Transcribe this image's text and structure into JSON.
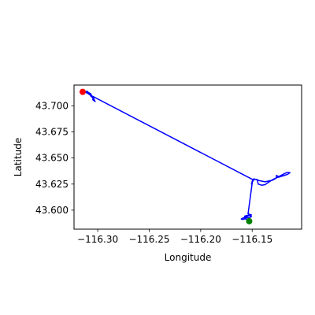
{
  "chart_data": {
    "type": "line",
    "title": "",
    "xlabel": "Longitude",
    "ylabel": "Latitude",
    "xlim": [
      -116.323,
      -116.102
    ],
    "ylim": [
      43.5818,
      43.7199
    ],
    "xticks": [
      {
        "value": -116.3,
        "label": "−116.30"
      },
      {
        "value": -116.25,
        "label": "−116.25"
      },
      {
        "value": -116.2,
        "label": "−116.20"
      },
      {
        "value": -116.15,
        "label": "−116.15"
      }
    ],
    "yticks": [
      {
        "value": 43.6,
        "label": "43.600"
      },
      {
        "value": 43.625,
        "label": "43.625"
      },
      {
        "value": 43.65,
        "label": "43.650"
      },
      {
        "value": 43.675,
        "label": "43.675"
      },
      {
        "value": 43.7,
        "label": "43.700"
      }
    ],
    "grid": false,
    "series": [
      {
        "color": "#0000ff",
        "points": [
          [
            -116.1529,
            43.5883
          ],
          [
            -116.1529,
            43.5905
          ],
          [
            -116.1562,
            43.5916
          ],
          [
            -116.1573,
            43.5916
          ],
          [
            -116.1595,
            43.5911
          ],
          [
            -116.1606,
            43.5916
          ],
          [
            -116.1584,
            43.5927
          ],
          [
            -116.1529,
            43.5927
          ],
          [
            -116.1507,
            43.5938
          ],
          [
            -116.1529,
            43.5949
          ],
          [
            -116.1551,
            43.5938
          ],
          [
            -116.1573,
            43.5932
          ],
          [
            -116.1573,
            43.5943
          ],
          [
            -116.1551,
            43.5949
          ],
          [
            -116.1507,
            43.5954
          ],
          [
            -116.154,
            43.5965
          ],
          [
            -116.1496,
            43.6289
          ],
          [
            -116.1507,
            43.625
          ],
          [
            -116.1485,
            43.6294
          ],
          [
            -116.1452,
            43.6294
          ],
          [
            -116.1441,
            43.625
          ],
          [
            -116.1408,
            43.6239
          ],
          [
            -116.1375,
            43.6244
          ],
          [
            -116.1342,
            43.6267
          ],
          [
            -116.1298,
            43.6294
          ],
          [
            -116.1254,
            43.6316
          ],
          [
            -116.1221,
            43.6333
          ],
          [
            -116.1199,
            43.6344
          ],
          [
            -116.1166,
            43.636
          ],
          [
            -116.1133,
            43.636
          ],
          [
            -116.1155,
            43.6344
          ],
          [
            -116.1188,
            43.6333
          ],
          [
            -116.1243,
            43.6316
          ],
          [
            -116.1265,
            43.6311
          ],
          [
            -116.1265,
            43.6333
          ],
          [
            -116.1243,
            43.6322
          ],
          [
            -116.1298,
            43.6289
          ],
          [
            -116.1375,
            43.6272
          ],
          [
            -116.143,
            43.6283
          ],
          [
            -116.1463,
            43.6294
          ],
          [
            -116.1485,
            43.63
          ],
          [
            -116.1496,
            43.6278
          ],
          [
            -116.1496,
            43.6294
          ],
          [
            -116.3047,
            43.709
          ],
          [
            -116.3047,
            43.7057
          ],
          [
            -116.3025,
            43.7041
          ],
          [
            -116.3036,
            43.7063
          ],
          [
            -116.3047,
            43.709
          ],
          [
            -116.3058,
            43.7095
          ],
          [
            -116.3069,
            43.7117
          ],
          [
            -116.3102,
            43.7128
          ],
          [
            -116.3124,
            43.7134
          ],
          [
            -116.3102,
            43.7139
          ],
          [
            -116.3091,
            43.7128
          ],
          [
            -116.3069,
            43.7117
          ],
          [
            -116.3069,
            43.7095
          ],
          [
            -116.3058,
            43.7084
          ],
          [
            -116.3047,
            43.7079
          ],
          [
            -116.3069,
            43.7101
          ],
          [
            -116.3102,
            43.7123
          ],
          [
            -116.3146,
            43.7134
          ]
        ]
      }
    ],
    "markers": [
      {
        "lon": -116.3146,
        "lat": 43.7134,
        "color": "#ff0000"
      },
      {
        "lon": -116.1529,
        "lat": 43.5894,
        "color": "#008000"
      }
    ]
  }
}
